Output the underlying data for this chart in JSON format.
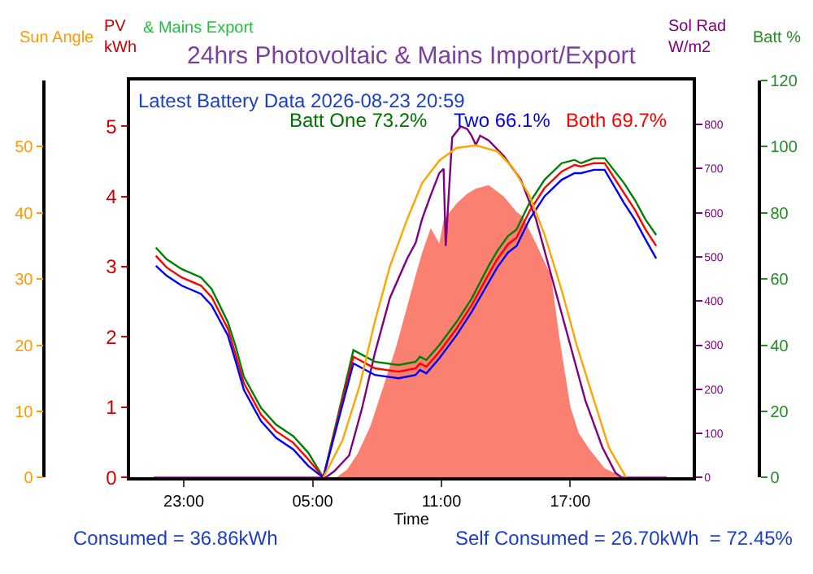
{
  "chart_data": [
    {
      "type": "line",
      "title": "24hrs Photovoltaic & Mains Import/Export",
      "xlabel": "Time",
      "ylabel": "PV kWh",
      "y2label": "Sol Rad W/m2",
      "y3label": "Batt %",
      "annotations": [
        "& Mains Export",
        "Latest Battery Data 2026-08-23 20:59",
        "Batt One 73.2%",
        "Two 66.1%",
        "Both 69.7%",
        "Consumed = 36.86kWh",
        "Self Consumed = 26.70kWh  = 72.45%"
      ],
      "xlim": [
        "2026-08-22T20:30",
        "2026-08-23T22:42"
      ],
      "xticks": [
        {
          "value": "2026-08-22T23:00",
          "label": "23:00"
        },
        {
          "value": "2026-08-23T05:00",
          "label": "05:00"
        },
        {
          "value": "2026-08-23T11:00",
          "label": "11:00"
        },
        {
          "value": "2026-08-23T17:00",
          "label": "17:00"
        }
      ],
      "ylim": [
        0,
        5.65
      ],
      "yticks": [
        0,
        1,
        2,
        3,
        4,
        5
      ],
      "y2lim": [
        0,
        900
      ],
      "y2ticks": [
        0,
        100,
        200,
        300,
        400,
        500,
        600,
        700,
        800
      ],
      "y3lim": [
        0,
        120
      ],
      "y3ticks": [
        0,
        20,
        40,
        60,
        80,
        100,
        120
      ],
      "marker": "none",
      "line_style": "solid",
      "x": [
        "2026-08-22T21:42",
        "2026-08-22T22:12",
        "2026-08-22T22:54",
        "2026-08-22T23:48",
        "2026-08-23T00:18",
        "2026-08-23T01:03",
        "2026-08-23T01:24",
        "2026-08-23T01:48",
        "2026-08-23T02:36",
        "2026-08-23T03:18",
        "2026-08-23T04:06",
        "2026-08-23T04:48",
        "2026-08-23T05:30",
        "2026-08-23T06:54",
        "2026-08-23T07:54",
        "2026-08-23T09:00",
        "2026-08-23T09:48",
        "2026-08-23T10:00",
        "2026-08-23T10:18",
        "2026-08-23T10:54",
        "2026-08-23T11:42",
        "2026-08-23T12:24",
        "2026-08-23T13:12",
        "2026-08-23T13:36",
        "2026-08-23T14:06",
        "2026-08-23T14:30",
        "2026-08-23T15:06",
        "2026-08-23T15:48",
        "2026-08-23T16:36",
        "2026-08-23T17:12",
        "2026-08-23T17:30",
        "2026-08-23T18:06",
        "2026-08-23T18:36",
        "2026-08-23T19:30",
        "2026-08-23T20:00",
        "2026-08-23T20:30",
        "2026-08-23T21:00"
      ],
      "series": [
        {
          "type": "area",
          "axis": "y",
          "color": "#fa8072",
          "x": [
            "2026-08-23T06:06",
            "2026-08-23T06:36",
            "2026-08-23T07:06",
            "2026-08-23T07:42",
            "2026-08-23T08:18",
            "2026-08-23T08:54",
            "2026-08-23T09:24",
            "2026-08-23T09:48",
            "2026-08-23T10:06",
            "2026-08-23T10:30",
            "2026-08-23T10:54",
            "2026-08-23T11:06",
            "2026-08-23T11:42",
            "2026-08-23T12:12",
            "2026-08-23T12:36",
            "2026-08-23T13:12",
            "2026-08-23T13:54",
            "2026-08-23T14:30",
            "2026-08-23T14:48",
            "2026-08-23T15:24",
            "2026-08-23T16:06",
            "2026-08-23T16:30",
            "2026-08-23T17:00",
            "2026-08-23T17:24",
            "2026-08-23T17:54",
            "2026-08-23T18:36",
            "2026-08-23T19:30"
          ],
          "values": [
            0,
            0.11,
            0.34,
            0.74,
            1.3,
            1.87,
            2.43,
            2.88,
            3.2,
            3.55,
            3.33,
            3.66,
            3.9,
            4.04,
            4.11,
            4.16,
            4.0,
            3.78,
            3.71,
            3.33,
            2.88,
            1.98,
            1.01,
            0.63,
            0.4,
            0.13,
            0
          ]
        },
        {
          "axis": "y2",
          "color": "#800080",
          "x": [
            "2026-08-22T21:36",
            "2026-08-23T05:36",
            "2026-08-23T06:00",
            "2026-08-23T06:42",
            "2026-08-23T07:18",
            "2026-08-23T07:54",
            "2026-08-23T08:36",
            "2026-08-23T09:24",
            "2026-08-23T09:48",
            "2026-08-23T10:06",
            "2026-08-23T10:30",
            "2026-08-23T10:54",
            "2026-08-23T11:06",
            "2026-08-23T11:12",
            "2026-08-23T11:30",
            "2026-08-23T11:54",
            "2026-08-23T12:12",
            "2026-08-23T12:24",
            "2026-08-23T12:36",
            "2026-08-23T12:48",
            "2026-08-23T13:12",
            "2026-08-23T13:54",
            "2026-08-23T14:42",
            "2026-08-23T15:24",
            "2026-08-23T16:12",
            "2026-08-23T17:00",
            "2026-08-23T17:42",
            "2026-08-23T18:30",
            "2026-08-23T19:06",
            "2026-08-23T19:24",
            "2026-08-23T21:30"
          ],
          "values": [
            0,
            0,
            14,
            50,
            157,
            282,
            407,
            496,
            532,
            586,
            640,
            690,
            700,
            525,
            771,
            796,
            790,
            775,
            754,
            775,
            764,
            729,
            675,
            586,
            443,
            300,
            175,
            68,
            11,
            0,
            0
          ]
        },
        {
          "axis": "y3",
          "color": "#008000",
          "values": [
            69.5,
            66,
            63,
            60.5,
            57,
            47,
            40,
            30.5,
            21,
            16,
            12.5,
            7.5,
            0,
            38.5,
            35,
            34,
            35,
            36.5,
            35.5,
            40,
            47,
            54,
            64,
            68.5,
            73,
            75,
            83,
            90,
            95,
            96,
            95,
            96.5,
            96.5,
            89,
            84,
            78,
            73.3
          ]
        },
        {
          "axis": "y3",
          "color": "#ff0000",
          "values": [
            67,
            63.5,
            60.5,
            58,
            54.5,
            45,
            37.5,
            28.5,
            19,
            14,
            10.5,
            5.5,
            0,
            36.5,
            33,
            32,
            33,
            34.5,
            33.5,
            38,
            45,
            52,
            61.5,
            66,
            70.5,
            72.5,
            80.5,
            87.5,
            92.5,
            94.5,
            94,
            95,
            95,
            86,
            81,
            75,
            70
          ]
        },
        {
          "axis": "y3",
          "color": "#0000ff",
          "values": [
            64,
            61,
            58,
            55.5,
            52,
            43,
            35.5,
            26.5,
            17,
            12,
            8.5,
            3.5,
            0,
            34.5,
            31,
            30,
            31,
            32.5,
            31.5,
            36,
            43,
            50,
            59,
            63.5,
            68,
            70,
            78,
            85,
            90,
            92,
            92,
            93,
            93,
            83,
            78,
            72,
            66.2
          ]
        }
      ]
    },
    {
      "type": "line",
      "ylabel": "Sun Angle",
      "tick_labels": "y",
      "marker": "none",
      "line_style": "solid",
      "xlim": [
        "2026-08-22T20:30",
        "2026-08-23T22:42"
      ],
      "ylim": [
        0,
        60
      ],
      "yticks": [
        0,
        10,
        20,
        30,
        40,
        50
      ],
      "series": [
        {
          "color": "#ffa500",
          "x": [
            "2026-08-23T05:30",
            "2026-08-23T06:24",
            "2026-08-23T07:12",
            "2026-08-23T07:54",
            "2026-08-23T08:36",
            "2026-08-23T09:24",
            "2026-08-23T10:06",
            "2026-08-23T10:54",
            "2026-08-23T11:42",
            "2026-08-23T12:36",
            "2026-08-23T13:36",
            "2026-08-23T14:18",
            "2026-08-23T15:06",
            "2026-08-23T15:48",
            "2026-08-23T16:36",
            "2026-08-23T17:18",
            "2026-08-23T18:06",
            "2026-08-23T18:48",
            "2026-08-23T19:36"
          ],
          "values": [
            0,
            5.7,
            14,
            23.6,
            31.9,
            39,
            44.5,
            47.9,
            49.8,
            50.2,
            49.3,
            46.9,
            42.6,
            36.7,
            28.3,
            20,
            11.7,
            4.5,
            0
          ]
        }
      ]
    }
  ]
}
